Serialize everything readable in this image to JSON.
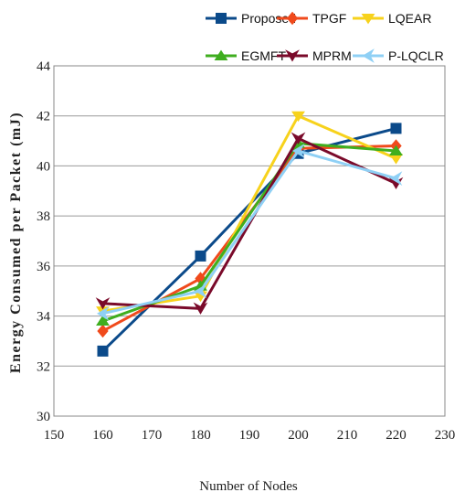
{
  "chart_data": {
    "type": "line",
    "title": "",
    "xlabel": "Number of Nodes",
    "ylabel": "Energy Consumed per Packet (mJ)",
    "xlim": [
      150,
      230
    ],
    "ylim": [
      30,
      44
    ],
    "x_ticks": [
      150,
      160,
      170,
      180,
      190,
      200,
      210,
      220,
      230
    ],
    "y_ticks": [
      30,
      32,
      34,
      36,
      38,
      40,
      42,
      44
    ],
    "grid": "horizontal",
    "legend_position": "top",
    "x": [
      160,
      180,
      200,
      220
    ],
    "series": [
      {
        "name": "Proposed",
        "values": [
          32.6,
          36.4,
          40.5,
          41.5
        ],
        "color": "#0b4a8a",
        "marker": "square"
      },
      {
        "name": "TPGF",
        "values": [
          33.4,
          35.5,
          40.7,
          40.8
        ],
        "color": "#f04a1c",
        "marker": "diamond"
      },
      {
        "name": "LQEAR",
        "values": [
          34.2,
          34.8,
          42.0,
          40.3
        ],
        "color": "#f7d21c",
        "marker": "triangle-down"
      },
      {
        "name": "EGMFT",
        "values": [
          33.8,
          35.2,
          40.9,
          40.6
        ],
        "color": "#3fae1f",
        "marker": "triangle-up"
      },
      {
        "name": "MPRM",
        "values": [
          34.5,
          34.3,
          41.1,
          39.3
        ],
        "color": "#7a0a2a",
        "marker": "arrow-down"
      },
      {
        "name": "P-LQCLR",
        "values": [
          34.1,
          35.0,
          40.6,
          39.5
        ],
        "color": "#8fd0f5",
        "marker": "chevron-left"
      }
    ]
  }
}
